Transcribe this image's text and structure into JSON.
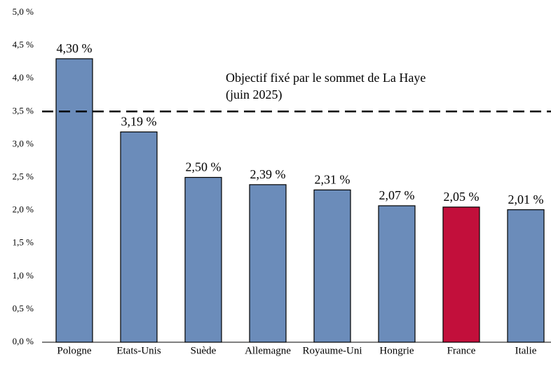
{
  "chart_data": {
    "type": "bar",
    "categories": [
      "Pologne",
      "Etats-Unis",
      "Suède",
      "Allemagne",
      "Royaume-Uni",
      "Hongrie",
      "France",
      "Italie"
    ],
    "values": [
      4.3,
      3.19,
      2.5,
      2.39,
      2.31,
      2.07,
      2.05,
      2.01
    ],
    "value_labels": [
      "4,30 %",
      "3,19 %",
      "2,50 %",
      "2,39 %",
      "2,31 %",
      "2,07 %",
      "2,05 %",
      "2,01 %"
    ],
    "colors": [
      "#6b8cba",
      "#6b8cba",
      "#6b8cba",
      "#6b8cba",
      "#6b8cba",
      "#6b8cba",
      "#c20f3b",
      "#6b8cba"
    ],
    "ylim": [
      0,
      5
    ],
    "yticks": [
      {
        "value": 0,
        "label": "0,0 %"
      },
      {
        "value": 0.5,
        "label": "0,5 %"
      },
      {
        "value": 1,
        "label": "1,0 %"
      },
      {
        "value": 1.5,
        "label": "1,5 %"
      },
      {
        "value": 2,
        "label": "2,0 %"
      },
      {
        "value": 2.5,
        "label": "2,5 %"
      },
      {
        "value": 3,
        "label": "3,0 %"
      },
      {
        "value": 3.5,
        "label": "3,5 %"
      },
      {
        "value": 4,
        "label": "4,0 %"
      },
      {
        "value": 4.5,
        "label": "4,5 %"
      },
      {
        "value": 5,
        "label": "5,0 %"
      }
    ],
    "reference_line": {
      "value": 3.5,
      "label": [
        "Objectif fixé par le sommet de La Haye",
        "(juin 2025)"
      ]
    },
    "grid": false
  }
}
